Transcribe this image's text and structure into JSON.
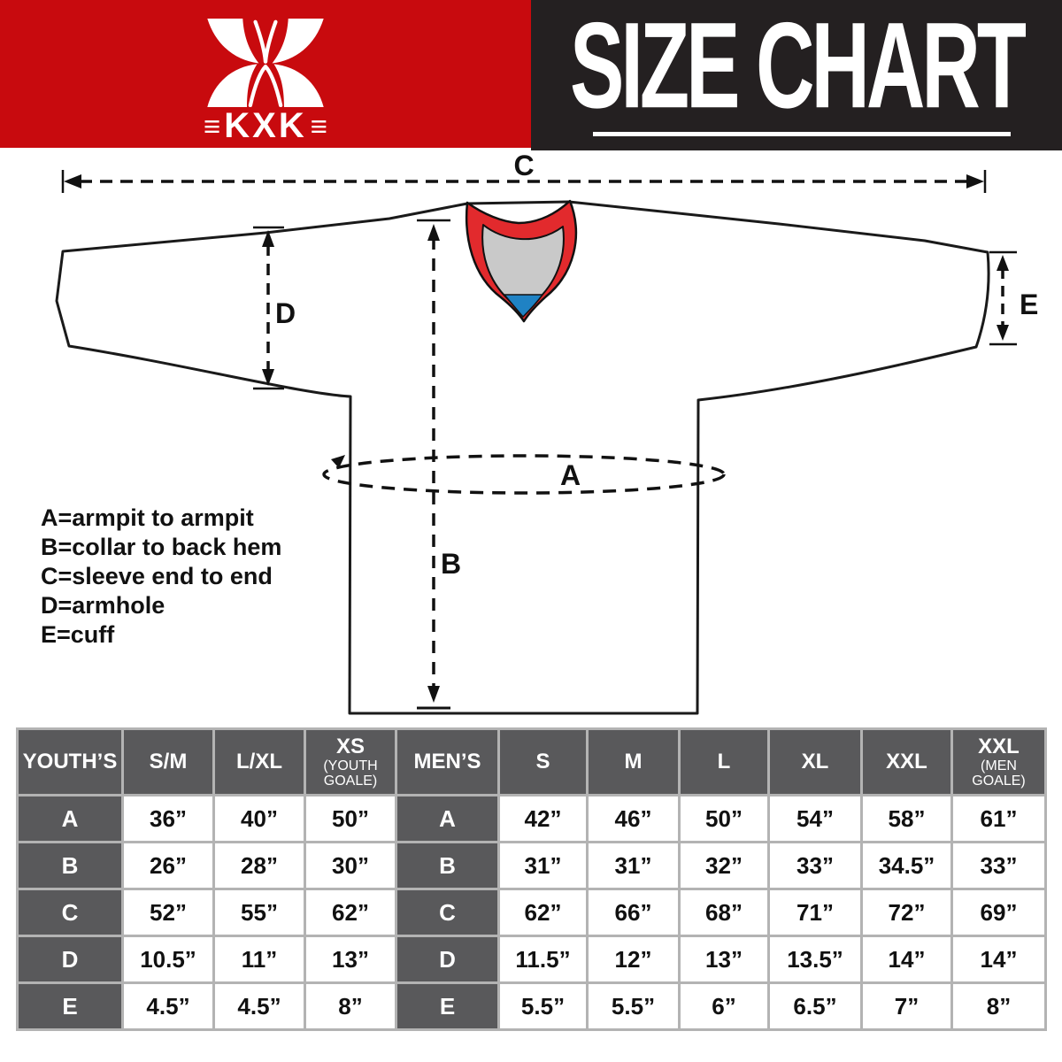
{
  "brand": {
    "logo_text": "KXK",
    "logo_flank_left": "≡",
    "logo_flank_right": "≡",
    "banner_red_color": "#c80a0e",
    "banner_black_color": "#242021"
  },
  "header": {
    "title": "SIZE CHART"
  },
  "diagram": {
    "labels": {
      "A": "A",
      "B": "B",
      "C": "C",
      "D": "D",
      "E": "E"
    },
    "legend": [
      "A=armpit to armpit",
      "B=collar to back hem",
      "C=sleeve end to end",
      "D=armhole",
      "E=cuff"
    ],
    "collar_colors": {
      "trim": "#e22a2d",
      "inner": "#c9c9c9",
      "bottom": "#1f82c4"
    }
  },
  "size_table": {
    "header": [
      {
        "label": "YOUTH’S"
      },
      {
        "label": "S/M"
      },
      {
        "label": "L/XL"
      },
      {
        "label": "XS",
        "sub": "(YOUTH GOALE)"
      },
      {
        "label": "MEN’S"
      },
      {
        "label": "S"
      },
      {
        "label": "M"
      },
      {
        "label": "L"
      },
      {
        "label": "XL"
      },
      {
        "label": "XXL"
      },
      {
        "label": "XXL",
        "sub": "(MEN GOALE)"
      }
    ],
    "rows": [
      {
        "measure": "A",
        "youth": [
          "36”",
          "40”",
          "50”"
        ],
        "men": [
          "42”",
          "46”",
          "50”",
          "54”",
          "58”",
          "61”"
        ]
      },
      {
        "measure": "B",
        "youth": [
          "26”",
          "28”",
          "30”"
        ],
        "men": [
          "31”",
          "31”",
          "32”",
          "33”",
          "34.5”",
          "33”"
        ]
      },
      {
        "measure": "C",
        "youth": [
          "52”",
          "55”",
          "62”"
        ],
        "men": [
          "62”",
          "66”",
          "68”",
          "71”",
          "72”",
          "69”"
        ]
      },
      {
        "measure": "D",
        "youth": [
          "10.5”",
          "11”",
          "13”"
        ],
        "men": [
          "11.5”",
          "12”",
          "13”",
          "13.5”",
          "14”",
          "14”"
        ]
      },
      {
        "measure": "E",
        "youth": [
          "4.5”",
          "4.5”",
          "8”"
        ],
        "men": [
          "5.5”",
          "5.5”",
          "6”",
          "6.5”",
          "7”",
          "8”"
        ]
      }
    ]
  }
}
